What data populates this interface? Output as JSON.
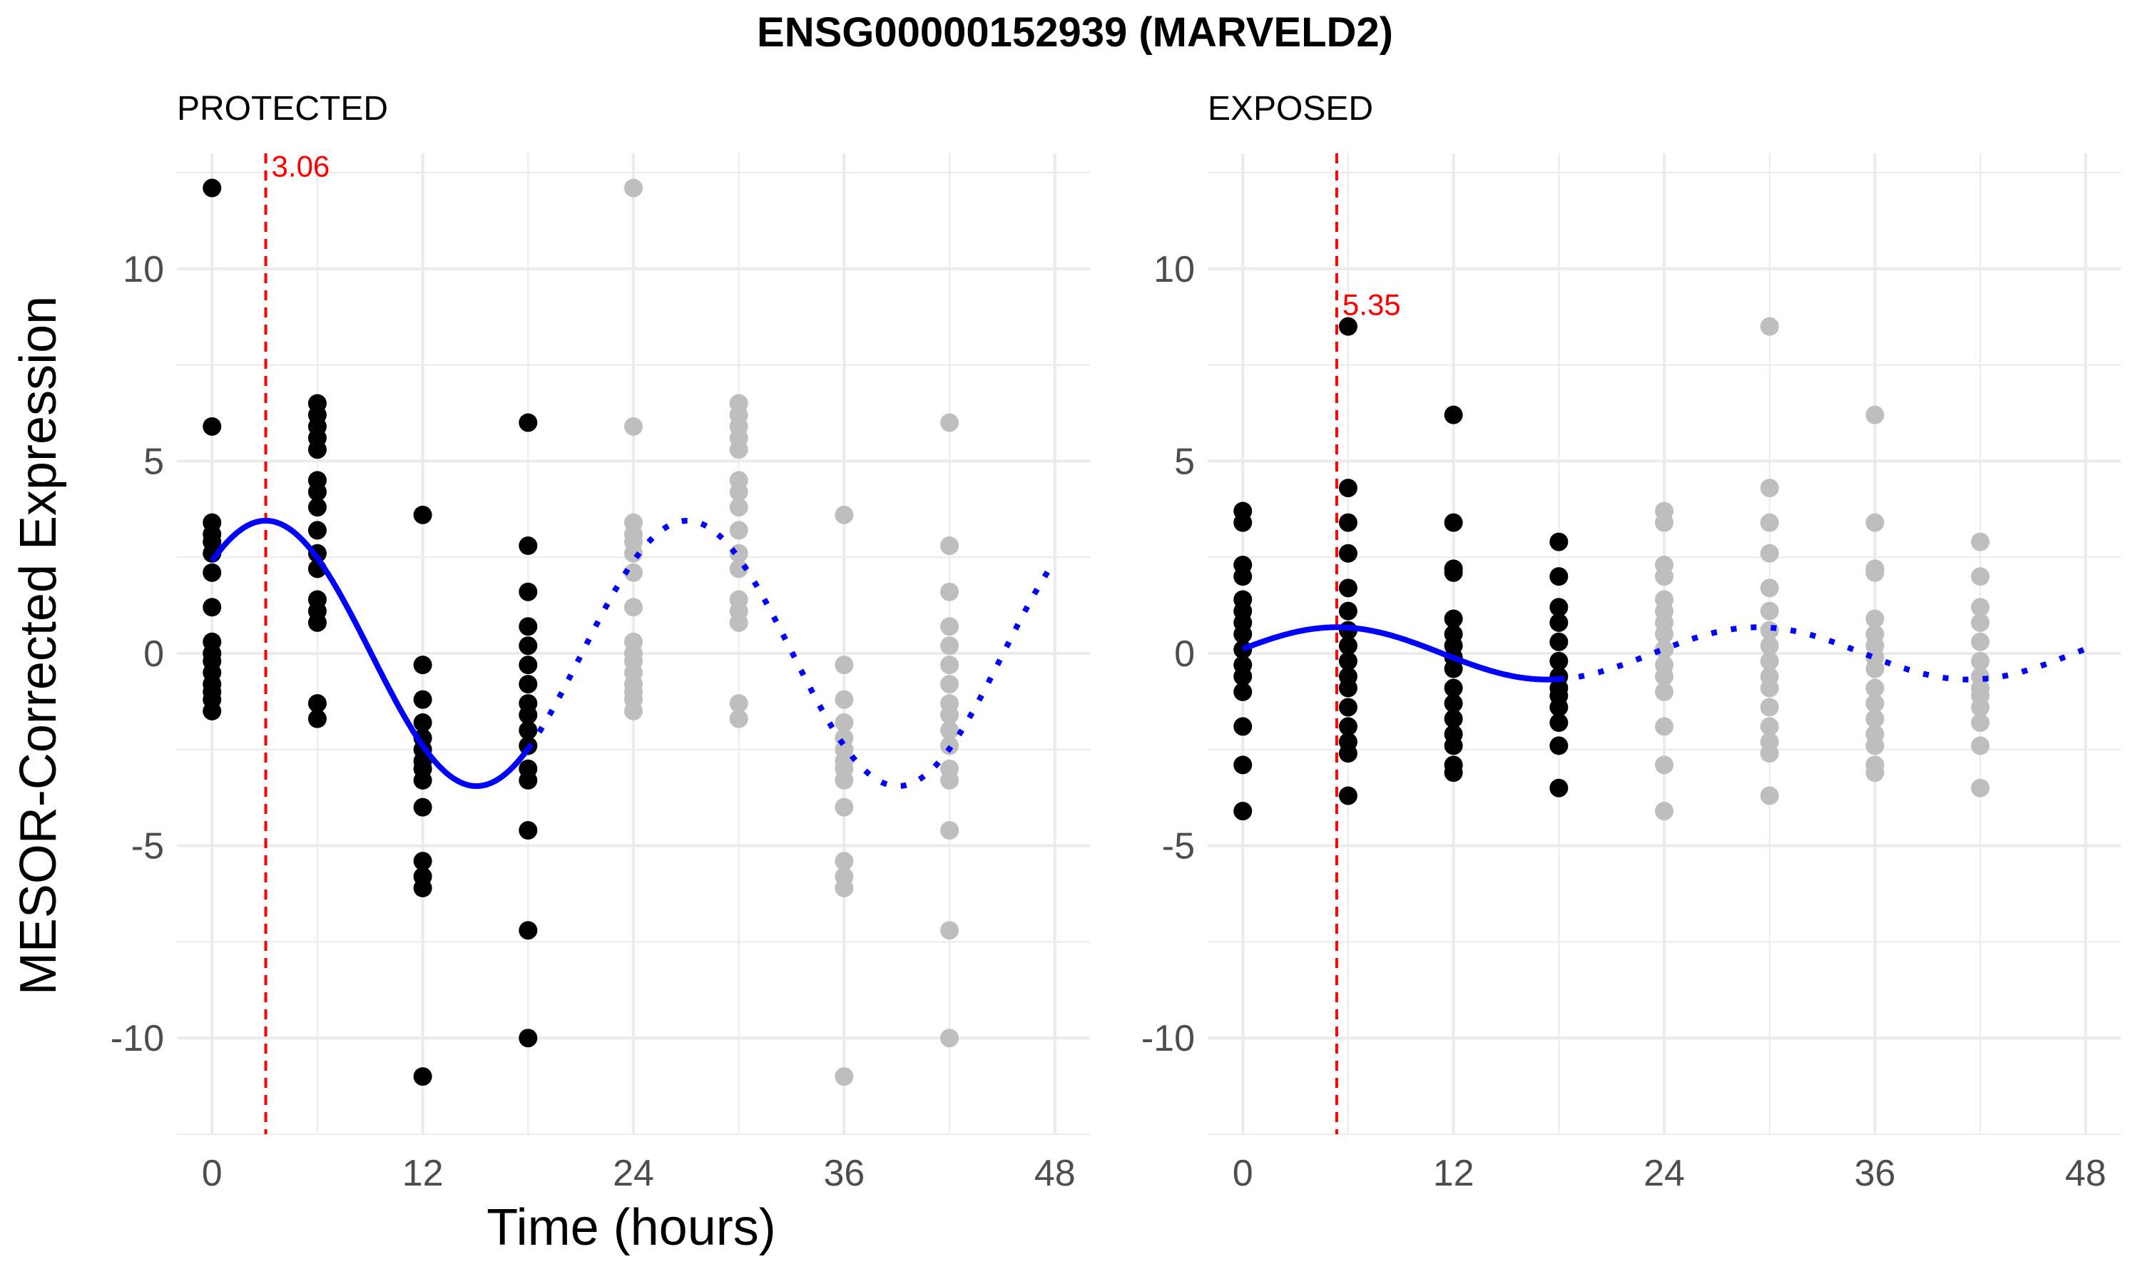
{
  "chart_data": {
    "type": "scatter",
    "title": "ENSG00000152939 (MARVELD2)",
    "xlabel": "Time (hours)",
    "ylabel": "MESOR-Corrected Expression",
    "xlim": [
      -2,
      50
    ],
    "ylim": [
      -12.5,
      13
    ],
    "x_ticks": [
      0,
      12,
      24,
      36,
      48
    ],
    "y_ticks": [
      -10,
      -5,
      0,
      5,
      10
    ],
    "colors": {
      "observed": "#000000",
      "replicated": "#bebebe",
      "fit": "#0000ff",
      "peak_line": "#ff0000",
      "grid": "#ebebeb"
    },
    "panels": [
      {
        "name": "PROTECTED",
        "peak_label": "3.06",
        "peak_time": 3.06,
        "cosinor": {
          "mesor": 0,
          "amplitude": 3.45,
          "period": 24,
          "acrophase": 3.06
        },
        "fit_observed_range": [
          0,
          18
        ],
        "fit_projected_range": [
          18,
          48
        ],
        "observed_points": [
          {
            "t": 0,
            "values": [
              12.1,
              5.9,
              3.4,
              3.1,
              2.9,
              2.6,
              2.1,
              1.2,
              0.3,
              0.0,
              -0.2,
              -0.5,
              -0.8,
              -1.0,
              -1.2,
              -1.5
            ]
          },
          {
            "t": 6,
            "values": [
              6.5,
              6.2,
              5.9,
              5.6,
              5.3,
              4.5,
              4.2,
              3.8,
              3.2,
              2.6,
              2.2,
              1.4,
              1.1,
              0.8,
              -1.3,
              -1.7
            ]
          },
          {
            "t": 12,
            "values": [
              3.6,
              -0.3,
              -1.2,
              -1.8,
              -2.2,
              -2.5,
              -2.8,
              -3.0,
              -3.3,
              -4.0,
              -5.4,
              -5.8,
              -6.1,
              -11.0
            ]
          },
          {
            "t": 18,
            "values": [
              6.0,
              2.8,
              1.6,
              0.7,
              0.2,
              -0.3,
              -0.8,
              -1.3,
              -1.6,
              -2.0,
              -2.4,
              -3.0,
              -3.3,
              -4.6,
              -7.2,
              -10.0
            ]
          }
        ],
        "replicated_points": [
          {
            "t": 24,
            "values": [
              12.1,
              5.9,
              3.4,
              3.1,
              2.9,
              2.6,
              2.1,
              1.2,
              0.3,
              0.0,
              -0.2,
              -0.5,
              -0.8,
              -1.0,
              -1.2,
              -1.5
            ]
          },
          {
            "t": 30,
            "values": [
              6.5,
              6.2,
              5.9,
              5.6,
              5.3,
              4.5,
              4.2,
              3.8,
              3.2,
              2.6,
              2.2,
              1.4,
              1.1,
              0.8,
              -1.3,
              -1.7
            ]
          },
          {
            "t": 36,
            "values": [
              3.6,
              -0.3,
              -1.2,
              -1.8,
              -2.2,
              -2.5,
              -2.8,
              -3.0,
              -3.3,
              -4.0,
              -5.4,
              -5.8,
              -6.1,
              -11.0
            ]
          },
          {
            "t": 42,
            "values": [
              6.0,
              2.8,
              1.6,
              0.7,
              0.2,
              -0.3,
              -0.8,
              -1.3,
              -1.6,
              -2.0,
              -2.4,
              -3.0,
              -3.3,
              -4.6,
              -7.2,
              -10.0
            ]
          }
        ]
      },
      {
        "name": "EXPOSED",
        "peak_label": "5.35",
        "peak_time": 5.35,
        "cosinor": {
          "mesor": 0,
          "amplitude": 0.68,
          "period": 24,
          "acrophase": 5.35
        },
        "fit_observed_range": [
          0,
          18
        ],
        "fit_projected_range": [
          18,
          48
        ],
        "observed_points": [
          {
            "t": 0,
            "values": [
              3.7,
              3.4,
              2.3,
              2.0,
              1.4,
              1.1,
              0.8,
              0.5,
              0.1,
              -0.3,
              -0.6,
              -1.0,
              -1.9,
              -2.9,
              -4.1
            ]
          },
          {
            "t": 6,
            "values": [
              8.5,
              4.3,
              3.4,
              2.6,
              1.7,
              1.1,
              0.6,
              0.2,
              -0.2,
              -0.6,
              -0.9,
              -1.4,
              -1.9,
              -2.3,
              -2.6,
              -3.7
            ]
          },
          {
            "t": 12,
            "values": [
              6.2,
              3.4,
              2.2,
              2.1,
              0.9,
              0.5,
              0.2,
              -0.1,
              -0.4,
              -0.9,
              -1.3,
              -1.7,
              -2.1,
              -2.4,
              -2.9,
              -3.1
            ]
          },
          {
            "t": 18,
            "values": [
              2.9,
              2.0,
              1.2,
              0.8,
              0.3,
              -0.2,
              -0.6,
              -0.9,
              -1.1,
              -1.4,
              -1.8,
              -2.4,
              -3.5
            ]
          }
        ],
        "replicated_points": [
          {
            "t": 24,
            "values": [
              3.7,
              3.4,
              2.3,
              2.0,
              1.4,
              1.1,
              0.8,
              0.5,
              0.1,
              -0.3,
              -0.6,
              -1.0,
              -1.9,
              -2.9,
              -4.1
            ]
          },
          {
            "t": 30,
            "values": [
              8.5,
              4.3,
              3.4,
              2.6,
              1.7,
              1.1,
              0.6,
              0.2,
              -0.2,
              -0.6,
              -0.9,
              -1.4,
              -1.9,
              -2.3,
              -2.6,
              -3.7
            ]
          },
          {
            "t": 36,
            "values": [
              6.2,
              3.4,
              2.2,
              2.1,
              0.9,
              0.5,
              0.2,
              -0.1,
              -0.4,
              -0.9,
              -1.3,
              -1.7,
              -2.1,
              -2.4,
              -2.9,
              -3.1
            ]
          },
          {
            "t": 42,
            "values": [
              2.9,
              2.0,
              1.2,
              0.8,
              0.3,
              -0.2,
              -0.6,
              -0.9,
              -1.1,
              -1.4,
              -1.8,
              -2.4,
              -3.5
            ]
          }
        ]
      }
    ]
  }
}
